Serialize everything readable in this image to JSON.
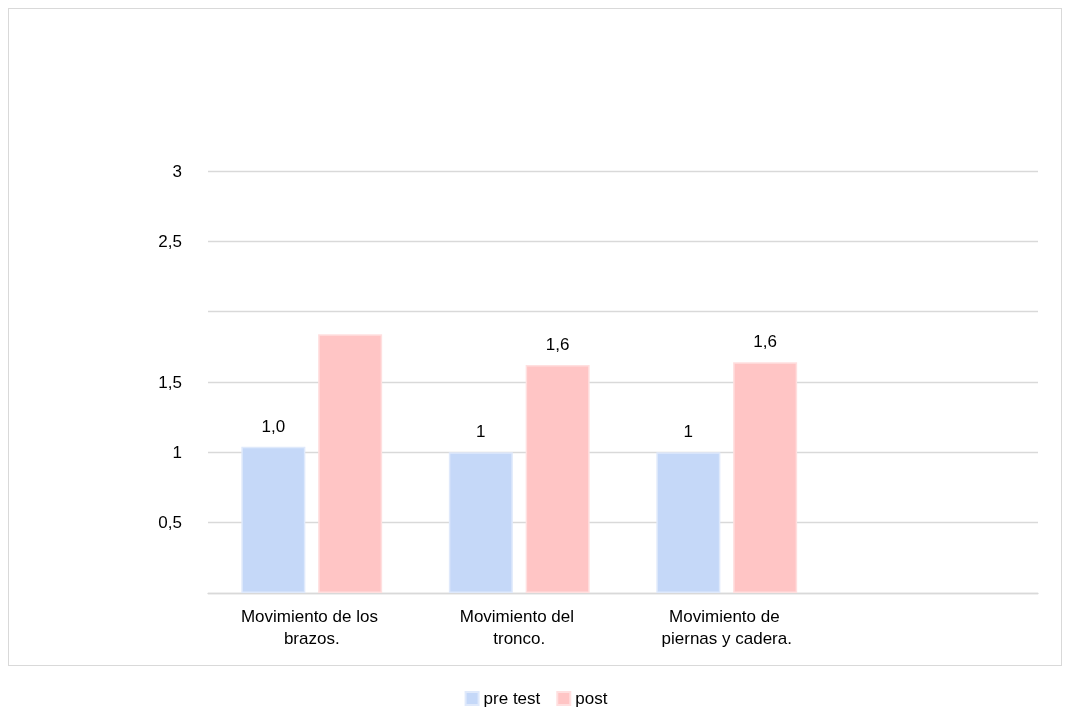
{
  "chart_data": {
    "type": "bar",
    "categories": [
      "Movimiento de los brazos.",
      "Movimiento del tronco.",
      "Movimiento de piernas y cadera.",
      null
    ],
    "series": [
      {
        "name": "pre test",
        "color": "#c5d8f8",
        "values": [
          1.04,
          1,
          1,
          null
        ],
        "value_labels": [
          "1,0",
          "1",
          "1",
          null
        ]
      },
      {
        "name": "post",
        "color": "#ffc5c5",
        "values": [
          1.84,
          1.62,
          1.64,
          null
        ],
        "value_labels": [
          null,
          "1,6",
          "1,6",
          null
        ]
      }
    ],
    "ylim": [
      0,
      3
    ],
    "yticks": [
      {
        "value": 0,
        "label": null
      },
      {
        "value": 0.5,
        "label": "0,5"
      },
      1,
      {
        "value": 1.5,
        "label": "1,5"
      },
      {
        "value": 2,
        "label": null
      },
      {
        "value": 2.5,
        "label": "2,5"
      },
      3
    ],
    "grid": "y",
    "legend": "bottom"
  }
}
